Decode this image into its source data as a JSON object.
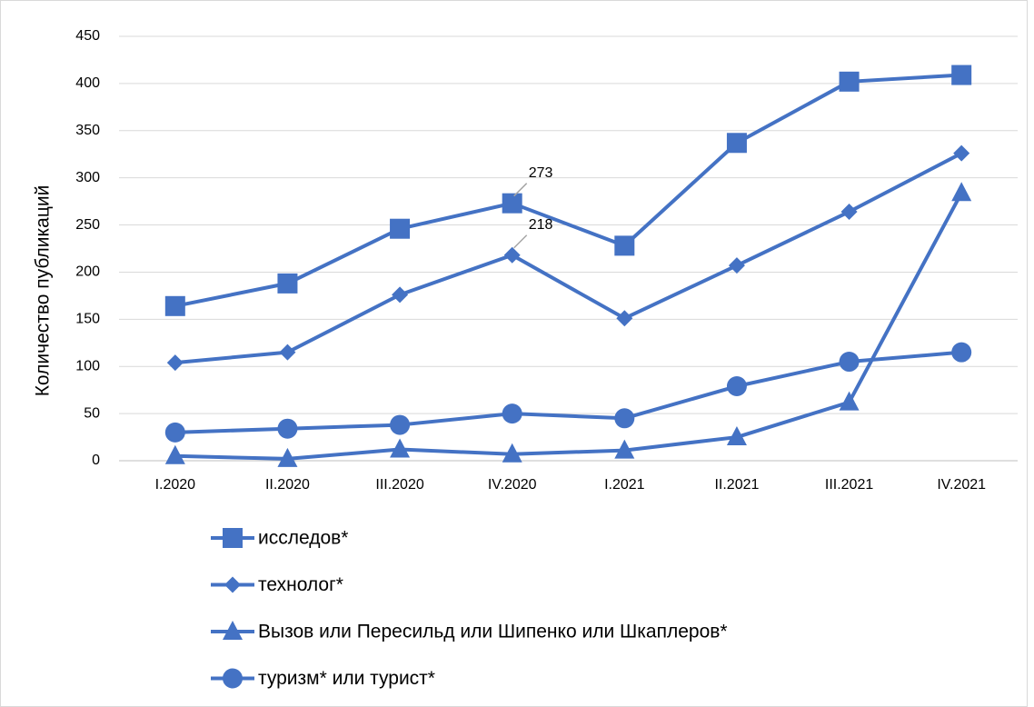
{
  "chart_data": {
    "type": "line",
    "y_label": "Количество публикаций",
    "categories": [
      "I.2020",
      "II.2020",
      "III.2020",
      "IV.2020",
      "I.2021",
      "II.2021",
      "III.2021",
      "IV.2021"
    ],
    "series": [
      {
        "name": "исследов*",
        "color": "#4472c4",
        "marker": "square",
        "values": [
          164,
          188,
          246,
          273,
          228,
          337,
          402,
          409
        ],
        "value_labels": [
          null,
          null,
          null,
          "273",
          null,
          null,
          null,
          null
        ]
      },
      {
        "name": "технолог*",
        "color": "#4472c4",
        "marker": "diamond",
        "values": [
          104,
          115,
          176,
          218,
          151,
          207,
          264,
          326
        ],
        "value_labels": [
          null,
          null,
          null,
          "218",
          null,
          null,
          null,
          null
        ]
      },
      {
        "name": "Вызов или Пересильд или Шипенко или Шкаплеров*",
        "color": "#4472c4",
        "marker": "triangle",
        "values": [
          5,
          2,
          12,
          7,
          11,
          25,
          62,
          284
        ]
      },
      {
        "name": "туризм* или турист*",
        "color": "#4472c4",
        "marker": "circle",
        "values": [
          30,
          34,
          38,
          50,
          45,
          79,
          105,
          115
        ]
      }
    ],
    "ylim": [
      0,
      450
    ],
    "yticks": [
      0,
      50,
      100,
      150,
      200,
      250,
      300,
      350,
      400,
      450
    ],
    "grid": true,
    "legend": "bottom"
  }
}
